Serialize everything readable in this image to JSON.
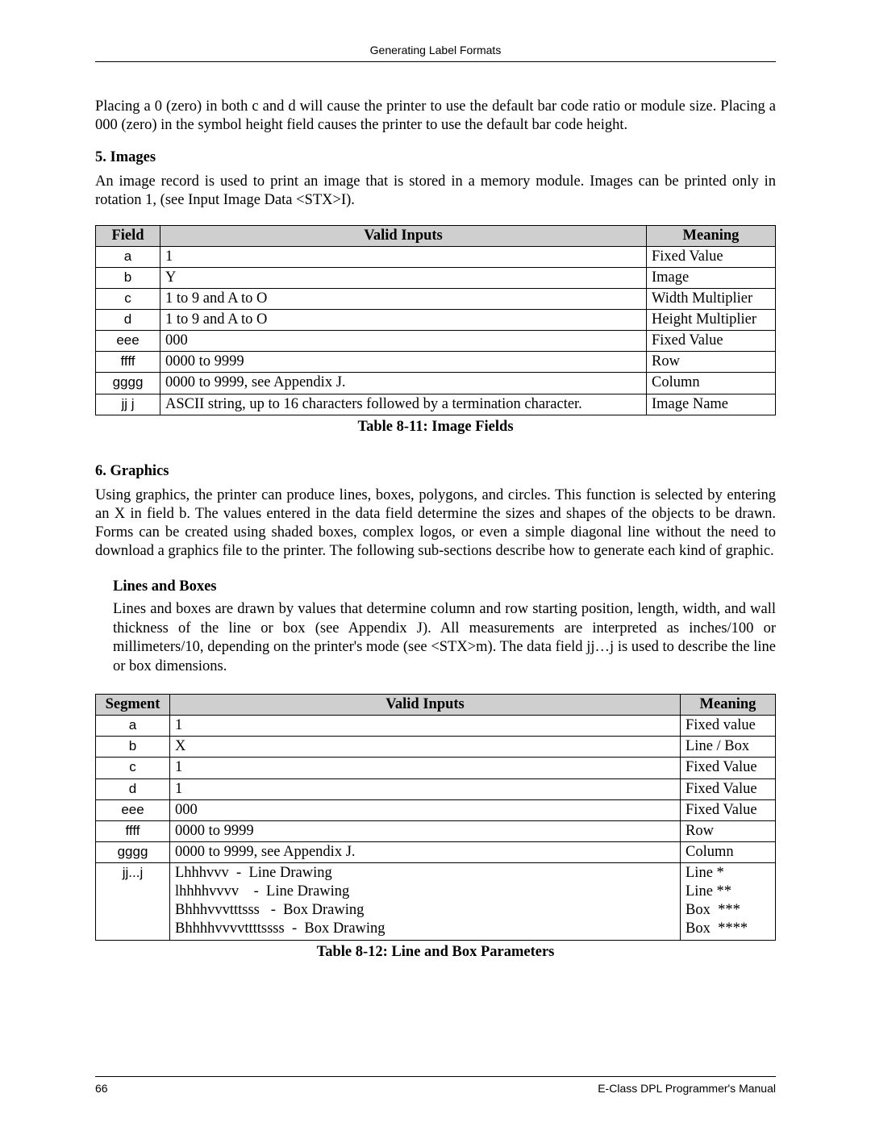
{
  "header": {
    "title": "Generating Label Formats"
  },
  "intro": "Placing a 0 (zero) in both c and d will cause the printer to use the default bar code ratio or module size.  Placing a 000 (zero) in the symbol height field causes the printer to use the default bar code height.",
  "sections": {
    "images": {
      "heading": "5. Images",
      "body": "An image record is used to print an image that is stored in a memory module. Images can be printed only in rotation 1, (see Input Image Data <STX>I).",
      "table": {
        "headers": [
          "Field",
          "Valid Inputs",
          "Meaning"
        ],
        "rows": [
          {
            "field": "a",
            "inputs": "1",
            "meaning": "Fixed Value"
          },
          {
            "field": "b",
            "inputs": "Y",
            "meaning": "Image"
          },
          {
            "field": "c",
            "inputs": "1 to 9 and A to O",
            "meaning": "Width Multiplier"
          },
          {
            "field": "d",
            "inputs": "1 to 9 and A to O",
            "meaning": "Height Multiplier"
          },
          {
            "field": "eee",
            "inputs": "000",
            "meaning": "Fixed Value"
          },
          {
            "field": "ffff",
            "inputs": "0000 to 9999",
            "meaning": "Row"
          },
          {
            "field": "gggg",
            "inputs": "0000 to 9999, see Appendix J.",
            "meaning": "Column"
          },
          {
            "field": "jj j",
            "inputs": "ASCII string, up to 16 characters followed by a termination character.",
            "meaning": "Image Name"
          }
        ],
        "caption": "Table 8-11: Image Fields"
      }
    },
    "graphics": {
      "heading": "6. Graphics",
      "body": "Using graphics, the printer can produce lines, boxes, polygons, and circles. This function is selected by entering an X in field b. The values entered in the data field determine the sizes and shapes of the objects to be drawn. Forms can be created using shaded boxes, complex logos, or even a simple diagonal line without the need to download a graphics file to the printer. The following sub-sections describe how to generate each kind of graphic.",
      "sub": {
        "heading": "Lines and Boxes",
        "body": "Lines and boxes are drawn by values that determine column and row starting position, length, width, and wall thickness of the line or box (see Appendix J). All measurements are interpreted as inches/100 or millimeters/10, depending on the printer's mode (see <STX>m). The data field jj…j is used to describe the line or box dimensions."
      },
      "table": {
        "headers": [
          "Segment",
          "Valid Inputs",
          "Meaning"
        ],
        "rows": [
          {
            "field": "a",
            "inputs": "1",
            "meaning": "Fixed value"
          },
          {
            "field": "b",
            "inputs": "X",
            "meaning": "Line / Box"
          },
          {
            "field": "c",
            "inputs": "1",
            "meaning": "Fixed Value"
          },
          {
            "field": "d",
            "inputs": "1",
            "meaning": "Fixed Value"
          },
          {
            "field": "eee",
            "inputs": "000",
            "meaning": "Fixed Value"
          },
          {
            "field": "ffff",
            "inputs": "0000 to 9999",
            "meaning": "Row"
          },
          {
            "field": "gggg",
            "inputs": "0000 to 9999, see Appendix J.",
            "meaning": "Column"
          },
          {
            "field": "jj...j",
            "inputs": "Lhhhvvv  -  Line Drawing\nlhhhhvvvv    -  Line Drawing\nBhhhvvvtttsss   -  Box Drawing\nBhhhhvvvvttttssss  -  Box Drawing",
            "meaning": "Line *\nLine **\nBox  ***\nBox  ****"
          }
        ],
        "caption": "Table 8-12: Line and Box Parameters"
      }
    }
  },
  "footer": {
    "page": "66",
    "manual": "E-Class DPL Programmer's Manual"
  }
}
